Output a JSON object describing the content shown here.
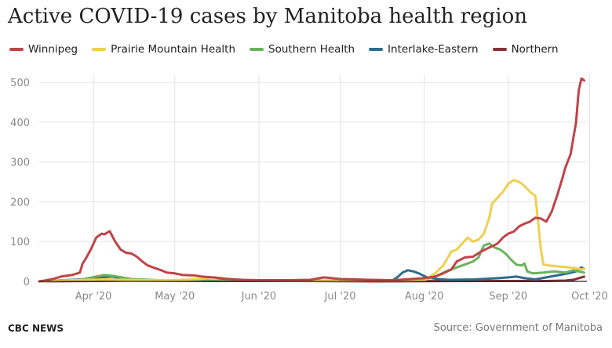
{
  "title": "Active COVID-19 cases by Manitoba health region",
  "footer": {
    "brand": "CBC NEWS",
    "source": "Source: Government of Manitoba"
  },
  "colors": {
    "Winnipeg": "#c0434a",
    "Prairie Mountain Health": "#f0cf4f",
    "Southern Health": "#69b35c",
    "Interlake-Eastern": "#2f6d8d",
    "Northern": "#8a2f38",
    "grid": "#e3e3e3",
    "axis": "#222222"
  },
  "chart_data": {
    "type": "line",
    "title": "Active COVID-19 cases by Manitoba health region",
    "xlabel": "",
    "ylabel": "",
    "ylim": [
      0,
      520
    ],
    "y_ticks": [
      0,
      100,
      200,
      300,
      400,
      500
    ],
    "x_range": [
      "2020-03-12",
      "2020-09-30"
    ],
    "x_ticks": [
      {
        "date": "2020-04-01",
        "label": "Apr '20"
      },
      {
        "date": "2020-05-01",
        "label": "May '20"
      },
      {
        "date": "2020-06-01",
        "label": "Jun '20"
      },
      {
        "date": "2020-07-01",
        "label": "Jul '20"
      },
      {
        "date": "2020-08-01",
        "label": "Aug '20"
      },
      {
        "date": "2020-09-01",
        "label": "Sep '20"
      },
      {
        "date": "2020-10-01",
        "label": "Oct '20"
      }
    ],
    "grid": true,
    "legend_position": "top",
    "series": [
      {
        "name": "Winnipeg",
        "points": [
          [
            "2020-03-12",
            0
          ],
          [
            "2020-03-14",
            2
          ],
          [
            "2020-03-17",
            6
          ],
          [
            "2020-03-20",
            12
          ],
          [
            "2020-03-24",
            16
          ],
          [
            "2020-03-27",
            22
          ],
          [
            "2020-03-28",
            45
          ],
          [
            "2020-03-29",
            55
          ],
          [
            "2020-03-31",
            80
          ],
          [
            "2020-04-02",
            110
          ],
          [
            "2020-04-04",
            120
          ],
          [
            "2020-04-05",
            118
          ],
          [
            "2020-04-07",
            126
          ],
          [
            "2020-04-09",
            100
          ],
          [
            "2020-04-11",
            80
          ],
          [
            "2020-04-13",
            72
          ],
          [
            "2020-04-15",
            70
          ],
          [
            "2020-04-17",
            62
          ],
          [
            "2020-04-19",
            50
          ],
          [
            "2020-04-21",
            40
          ],
          [
            "2020-04-23",
            35
          ],
          [
            "2020-04-26",
            28
          ],
          [
            "2020-04-28",
            22
          ],
          [
            "2020-05-01",
            20
          ],
          [
            "2020-05-04",
            16
          ],
          [
            "2020-05-08",
            15
          ],
          [
            "2020-05-11",
            12
          ],
          [
            "2020-05-15",
            10
          ],
          [
            "2020-05-20",
            6
          ],
          [
            "2020-05-26",
            4
          ],
          [
            "2020-06-01",
            3
          ],
          [
            "2020-06-10",
            3
          ],
          [
            "2020-06-20",
            4
          ],
          [
            "2020-06-25",
            10
          ],
          [
            "2020-06-28",
            8
          ],
          [
            "2020-07-01",
            6
          ],
          [
            "2020-07-07",
            5
          ],
          [
            "2020-07-12",
            4
          ],
          [
            "2020-07-20",
            3
          ],
          [
            "2020-07-25",
            5
          ],
          [
            "2020-08-01",
            8
          ],
          [
            "2020-08-05",
            12
          ],
          [
            "2020-08-08",
            20
          ],
          [
            "2020-08-11",
            30
          ],
          [
            "2020-08-13",
            50
          ],
          [
            "2020-08-16",
            60
          ],
          [
            "2020-08-19",
            62
          ],
          [
            "2020-08-22",
            75
          ],
          [
            "2020-08-25",
            85
          ],
          [
            "2020-08-28",
            95
          ],
          [
            "2020-08-30",
            110
          ],
          [
            "2020-09-01",
            120
          ],
          [
            "2020-09-03",
            125
          ],
          [
            "2020-09-05",
            138
          ],
          [
            "2020-09-07",
            145
          ],
          [
            "2020-09-09",
            150
          ],
          [
            "2020-09-11",
            160
          ],
          [
            "2020-09-13",
            158
          ],
          [
            "2020-09-15",
            150
          ],
          [
            "2020-09-17",
            175
          ],
          [
            "2020-09-18",
            195
          ],
          [
            "2020-09-19",
            215
          ],
          [
            "2020-09-21",
            260
          ],
          [
            "2020-09-22",
            285
          ],
          [
            "2020-09-24",
            320
          ],
          [
            "2020-09-26",
            400
          ],
          [
            "2020-09-27",
            480
          ],
          [
            "2020-09-28",
            510
          ],
          [
            "2020-09-29",
            505
          ]
        ]
      },
      {
        "name": "Prairie Mountain Health",
        "points": [
          [
            "2020-03-12",
            0
          ],
          [
            "2020-03-25",
            3
          ],
          [
            "2020-04-05",
            5
          ],
          [
            "2020-04-20",
            3
          ],
          [
            "2020-05-01",
            3
          ],
          [
            "2020-05-10",
            6
          ],
          [
            "2020-05-16",
            10
          ],
          [
            "2020-05-22",
            6
          ],
          [
            "2020-05-28",
            2
          ],
          [
            "2020-06-15",
            1
          ],
          [
            "2020-07-20",
            1
          ],
          [
            "2020-08-01",
            2
          ],
          [
            "2020-08-05",
            20
          ],
          [
            "2020-08-08",
            40
          ],
          [
            "2020-08-11",
            75
          ],
          [
            "2020-08-13",
            80
          ],
          [
            "2020-08-15",
            95
          ],
          [
            "2020-08-17",
            110
          ],
          [
            "2020-08-19",
            100
          ],
          [
            "2020-08-21",
            105
          ],
          [
            "2020-08-23",
            120
          ],
          [
            "2020-08-25",
            160
          ],
          [
            "2020-08-26",
            195
          ],
          [
            "2020-08-28",
            210
          ],
          [
            "2020-08-30",
            225
          ],
          [
            "2020-09-01",
            245
          ],
          [
            "2020-09-03",
            255
          ],
          [
            "2020-09-05",
            250
          ],
          [
            "2020-09-07",
            240
          ],
          [
            "2020-09-09",
            225
          ],
          [
            "2020-09-11",
            215
          ],
          [
            "2020-09-12",
            150
          ],
          [
            "2020-09-13",
            80
          ],
          [
            "2020-09-14",
            42
          ],
          [
            "2020-09-16",
            40
          ],
          [
            "2020-09-19",
            38
          ],
          [
            "2020-09-22",
            36
          ],
          [
            "2020-09-25",
            34
          ],
          [
            "2020-09-28",
            30
          ],
          [
            "2020-09-29",
            32
          ]
        ]
      },
      {
        "name": "Southern Health",
        "points": [
          [
            "2020-03-12",
            0
          ],
          [
            "2020-03-28",
            5
          ],
          [
            "2020-04-02",
            12
          ],
          [
            "2020-04-05",
            16
          ],
          [
            "2020-04-08",
            14
          ],
          [
            "2020-04-15",
            6
          ],
          [
            "2020-04-25",
            3
          ],
          [
            "2020-05-15",
            2
          ],
          [
            "2020-07-25",
            1
          ],
          [
            "2020-08-01",
            4
          ],
          [
            "2020-08-06",
            15
          ],
          [
            "2020-08-09",
            25
          ],
          [
            "2020-08-13",
            35
          ],
          [
            "2020-08-17",
            45
          ],
          [
            "2020-08-19",
            50
          ],
          [
            "2020-08-21",
            60
          ],
          [
            "2020-08-23",
            90
          ],
          [
            "2020-08-25",
            95
          ],
          [
            "2020-08-27",
            85
          ],
          [
            "2020-08-29",
            80
          ],
          [
            "2020-08-31",
            70
          ],
          [
            "2020-09-02",
            55
          ],
          [
            "2020-09-04",
            42
          ],
          [
            "2020-09-06",
            40
          ],
          [
            "2020-09-07",
            45
          ],
          [
            "2020-09-08",
            25
          ],
          [
            "2020-09-10",
            20
          ],
          [
            "2020-09-14",
            22
          ],
          [
            "2020-09-18",
            25
          ],
          [
            "2020-09-22",
            22
          ],
          [
            "2020-09-25",
            28
          ],
          [
            "2020-09-27",
            25
          ],
          [
            "2020-09-29",
            22
          ]
        ]
      },
      {
        "name": "Interlake-Eastern",
        "points": [
          [
            "2020-03-12",
            0
          ],
          [
            "2020-03-30",
            6
          ],
          [
            "2020-04-03",
            10
          ],
          [
            "2020-04-08",
            12
          ],
          [
            "2020-04-12",
            6
          ],
          [
            "2020-04-20",
            3
          ],
          [
            "2020-05-10",
            2
          ],
          [
            "2020-07-20",
            1
          ],
          [
            "2020-07-22",
            10
          ],
          [
            "2020-07-24",
            22
          ],
          [
            "2020-07-26",
            28
          ],
          [
            "2020-07-28",
            25
          ],
          [
            "2020-07-30",
            20
          ],
          [
            "2020-08-02",
            10
          ],
          [
            "2020-08-06",
            6
          ],
          [
            "2020-08-10",
            4
          ],
          [
            "2020-08-20",
            5
          ],
          [
            "2020-08-28",
            8
          ],
          [
            "2020-09-01",
            10
          ],
          [
            "2020-09-04",
            12
          ],
          [
            "2020-09-07",
            8
          ],
          [
            "2020-09-11",
            5
          ],
          [
            "2020-09-15",
            10
          ],
          [
            "2020-09-19",
            15
          ],
          [
            "2020-09-23",
            20
          ],
          [
            "2020-09-26",
            25
          ],
          [
            "2020-09-28",
            35
          ],
          [
            "2020-09-29",
            32
          ]
        ]
      },
      {
        "name": "Northern",
        "points": [
          [
            "2020-03-12",
            0
          ],
          [
            "2020-04-01",
            1
          ],
          [
            "2020-04-15",
            2
          ],
          [
            "2020-05-15",
            1
          ],
          [
            "2020-06-15",
            1
          ],
          [
            "2020-07-15",
            0
          ],
          [
            "2020-08-15",
            1
          ],
          [
            "2020-09-15",
            1
          ],
          [
            "2020-09-22",
            2
          ],
          [
            "2020-09-25",
            4
          ],
          [
            "2020-09-27",
            8
          ],
          [
            "2020-09-29",
            12
          ]
        ]
      }
    ]
  }
}
